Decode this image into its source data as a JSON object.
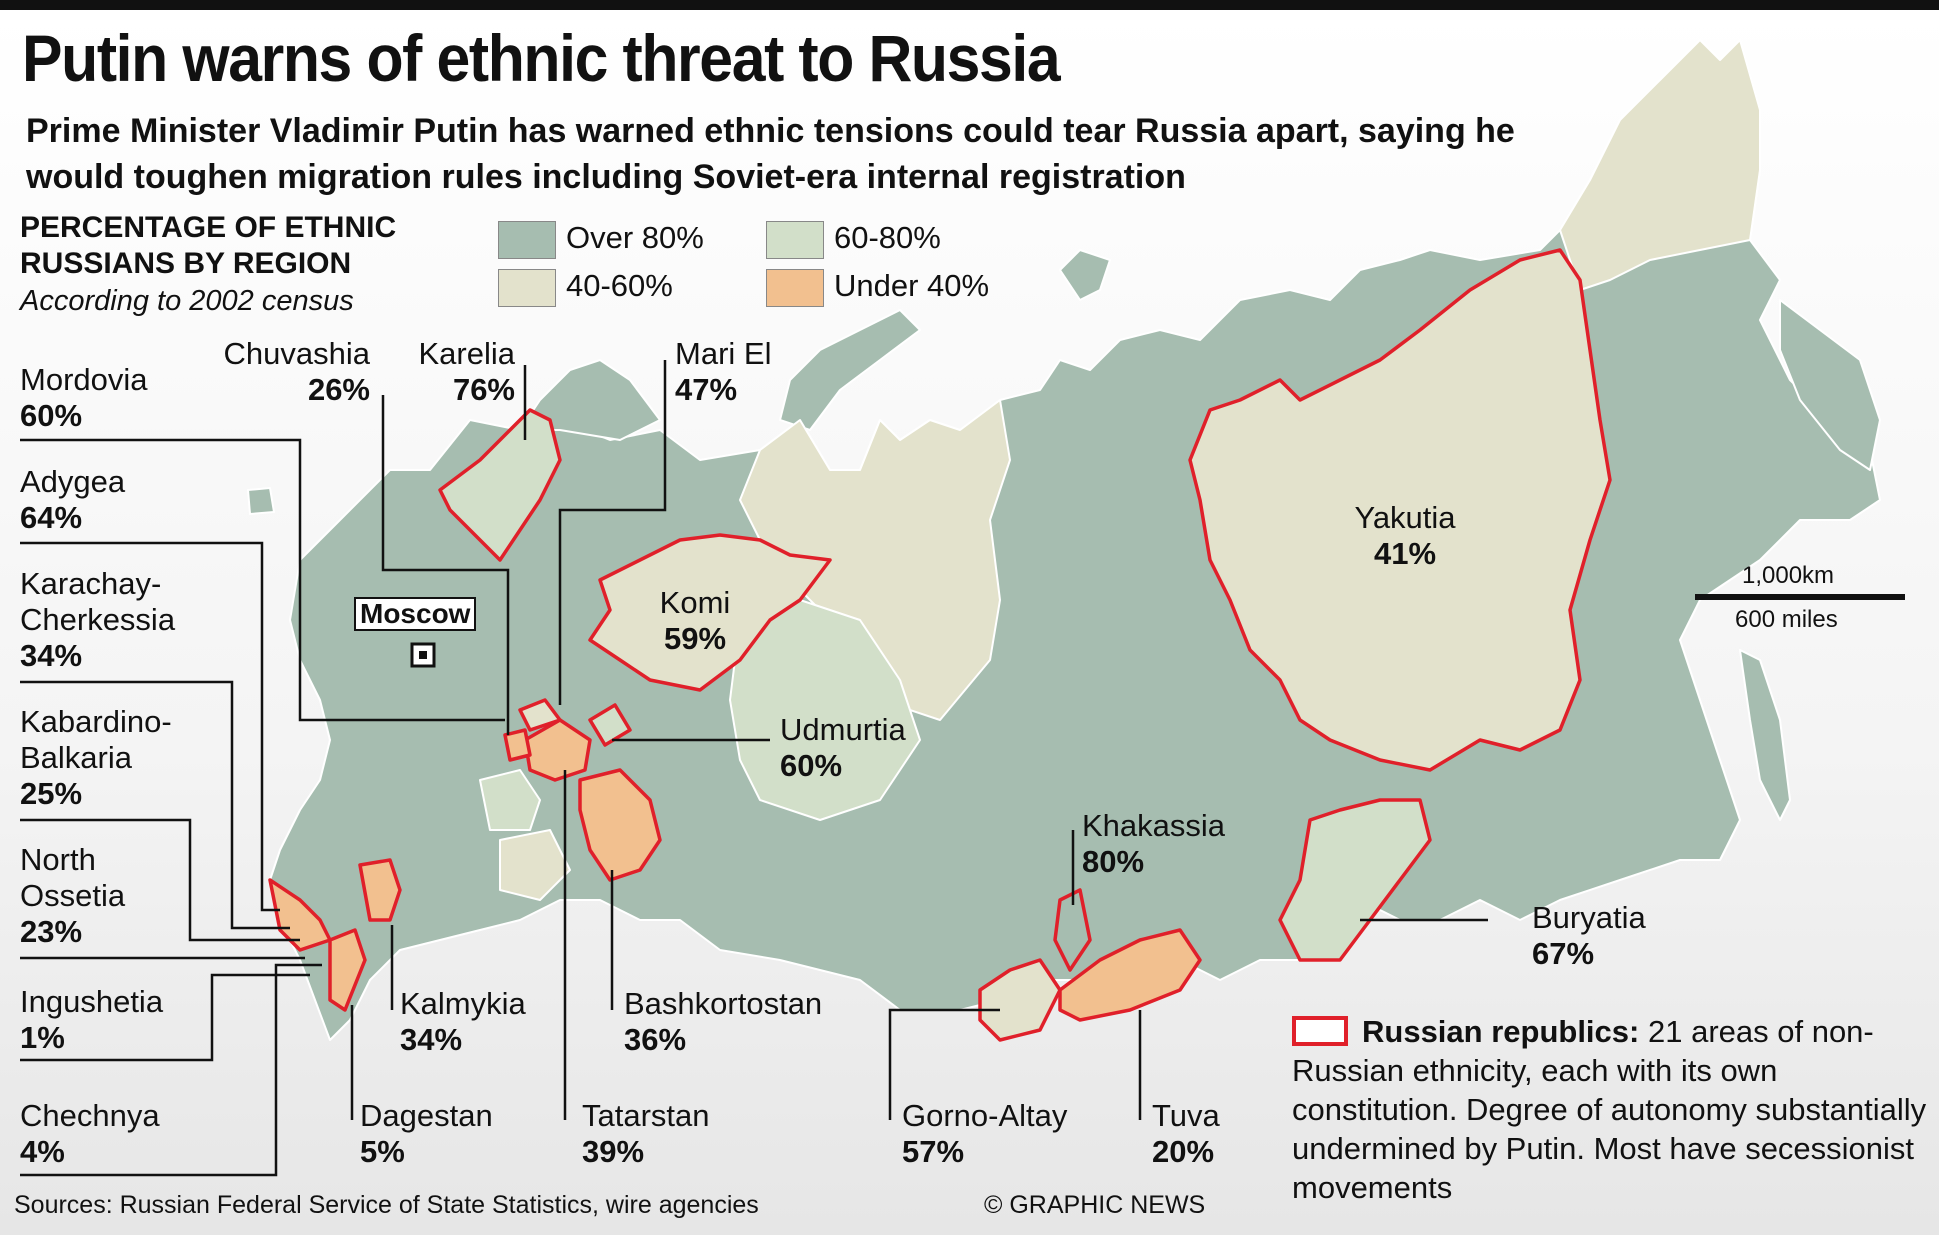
{
  "title": "Putin warns of ethnic threat to Russia",
  "subtitle": "Prime Minister Vladimir Putin has warned ethnic tensions could tear Russia apart, saying he would toughen migration rules including Soviet-era internal registration",
  "legend": {
    "title": "PERCENTAGE OF ETHNIC RUSSIANS BY REGION",
    "note": "According to 2002 census",
    "items": [
      {
        "label": "Over 80%",
        "color": "#a6bdb0"
      },
      {
        "label": "60-80%",
        "color": "#d2dfc9"
      },
      {
        "label": "40-60%",
        "color": "#e3e2cc"
      },
      {
        "label": "Under 40%",
        "color": "#f2c08f"
      }
    ]
  },
  "colors": {
    "border_red": "#e0202a",
    "sea": "#ffffff",
    "land_outline": "#ffffff"
  },
  "capital": "Moscow",
  "regions": {
    "mordovia": {
      "name": "Mordovia",
      "pct": "60%"
    },
    "adygea": {
      "name": "Adygea",
      "pct": "64%"
    },
    "karachay": {
      "name": "Karachay-Cherkessia",
      "pct": "34%"
    },
    "kabardino": {
      "name": "Kabardino-Balkaria",
      "pct": "25%"
    },
    "ossetia": {
      "name": "North Ossetia",
      "pct": "23%"
    },
    "ingushetia": {
      "name": "Ingushetia",
      "pct": "1%"
    },
    "chechnya": {
      "name": "Chechnya",
      "pct": "4%"
    },
    "chuvashia": {
      "name": "Chuvashia",
      "pct": "26%"
    },
    "karelia": {
      "name": "Karelia",
      "pct": "76%"
    },
    "mari_el": {
      "name": "Mari El",
      "pct": "47%"
    },
    "komi": {
      "name": "Komi",
      "pct": "59%"
    },
    "udmurtia": {
      "name": "Udmurtia",
      "pct": "60%"
    },
    "kalmykia": {
      "name": "Kalmykia",
      "pct": "34%"
    },
    "dagestan": {
      "name": "Dagestan",
      "pct": "5%"
    },
    "tatarstan": {
      "name": "Tatarstan",
      "pct": "39%"
    },
    "bashkortostan": {
      "name": "Bashkortostan",
      "pct": "36%"
    },
    "yakutia": {
      "name": "Yakutia",
      "pct": "41%"
    },
    "khakassia": {
      "name": "Khakassia",
      "pct": "80%"
    },
    "buryatia": {
      "name": "Buryatia",
      "pct": "67%"
    },
    "gorno_altay": {
      "name": "Gorno-Altay",
      "pct": "57%"
    },
    "tuva": {
      "name": "Tuva",
      "pct": "20%"
    }
  },
  "scale": {
    "km": "1,000km",
    "miles": "600 miles"
  },
  "note": {
    "heading": "Russian republics:",
    "text": "21 areas of non-Russian ethnicity, each with its own constitution. Degree of autonomy substantially undermined by Putin. Most have secessionist movements"
  },
  "source": "Sources: Russian Federal Service of State Statistics, wire agencies",
  "credit": "© GRAPHIC NEWS"
}
